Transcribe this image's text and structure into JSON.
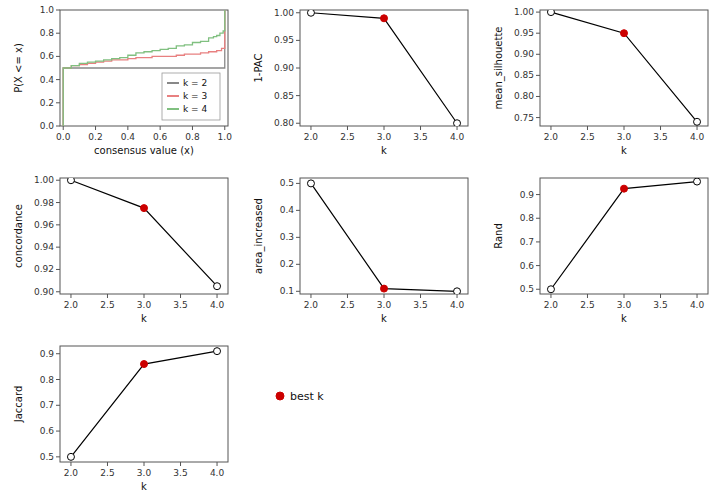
{
  "chart_data": [
    {
      "type": "step",
      "x_label": "consensus value (x)",
      "y_label": "P(X <= x)",
      "xlim": [
        -0.02,
        1.02
      ],
      "ylim": [
        0.0,
        1.0
      ],
      "xticks": [
        {
          "value": 0.0,
          "label": "0.0"
        },
        0.2,
        0.4,
        0.6,
        0.8,
        {
          "value": 1.0,
          "label": "1.0"
        }
      ],
      "yticks": [
        {
          "value": 0.0,
          "label": "0.0"
        },
        0.2,
        0.4,
        0.6,
        0.8,
        {
          "value": 1.0,
          "label": "1.0"
        }
      ],
      "grid": false,
      "legend": "lower right",
      "series": [
        {
          "name": "k = 2",
          "color": "#888888",
          "x": [
            0.0,
            0.0,
            0.5,
            0.5,
            1.0,
            1.0
          ],
          "values": [
            0.0,
            0.5,
            0.5,
            0.5,
            0.5,
            1.0
          ]
        },
        {
          "name": "k = 3",
          "color": "#e88080",
          "x": [
            0.0,
            0.0,
            0.05,
            0.1,
            0.15,
            0.2,
            0.25,
            0.3,
            0.35,
            0.4,
            0.45,
            0.5,
            0.55,
            0.6,
            0.65,
            0.7,
            0.75,
            0.8,
            0.85,
            0.9,
            0.95,
            0.98,
            1.0,
            1.0
          ],
          "values": [
            0.0,
            0.5,
            0.52,
            0.53,
            0.54,
            0.55,
            0.56,
            0.57,
            0.57,
            0.58,
            0.59,
            0.59,
            0.6,
            0.6,
            0.6,
            0.61,
            0.62,
            0.62,
            0.63,
            0.64,
            0.65,
            0.67,
            0.67,
            1.0
          ]
        },
        {
          "name": "k = 4",
          "color": "#80c080",
          "x": [
            0.0,
            0.0,
            0.05,
            0.1,
            0.15,
            0.2,
            0.25,
            0.3,
            0.35,
            0.4,
            0.45,
            0.5,
            0.55,
            0.6,
            0.65,
            0.7,
            0.75,
            0.8,
            0.85,
            0.9,
            0.93,
            0.95,
            0.97,
            0.99,
            1.0,
            1.0
          ],
          "values": [
            0.0,
            0.5,
            0.52,
            0.54,
            0.55,
            0.56,
            0.57,
            0.58,
            0.59,
            0.61,
            0.63,
            0.64,
            0.65,
            0.66,
            0.67,
            0.69,
            0.7,
            0.72,
            0.73,
            0.76,
            0.77,
            0.78,
            0.8,
            0.82,
            0.82,
            1.0
          ]
        }
      ]
    },
    {
      "type": "line",
      "x_label": "k",
      "y_label": "1-PAC",
      "x": [
        2,
        3,
        4
      ],
      "xlim": [
        1.85,
        4.15
      ],
      "xticks": [
        {
          "value": 2.0,
          "label": "2.0"
        },
        2.5,
        {
          "value": 3.0,
          "label": "3.0"
        },
        3.5,
        {
          "value": 4.0,
          "label": "4.0"
        }
      ],
      "ylim": [
        0.795,
        1.005
      ],
      "yticks": [
        {
          "value": 0.8,
          "label": "0.80"
        },
        0.85,
        {
          "value": 0.9,
          "label": "0.90"
        },
        0.95,
        {
          "value": 1.0,
          "label": "1.00"
        }
      ],
      "grid": false,
      "series": [
        {
          "color": "#000000",
          "marker": "circle",
          "colors": [
            "#ffffff",
            "#cc0000",
            "#ffffff"
          ],
          "values": [
            1.0,
            0.99,
            0.8
          ]
        }
      ]
    },
    {
      "type": "line",
      "x_label": "k",
      "y_label": "mean_silhouette",
      "x": [
        2,
        3,
        4
      ],
      "xlim": [
        1.85,
        4.15
      ],
      "xticks": [
        {
          "value": 2.0,
          "label": "2.0"
        },
        2.5,
        {
          "value": 3.0,
          "label": "3.0"
        },
        3.5,
        {
          "value": 4.0,
          "label": "4.0"
        }
      ],
      "ylim": [
        0.73,
        1.005
      ],
      "yticks": [
        0.75,
        {
          "value": 0.8,
          "label": "0.80"
        },
        0.85,
        {
          "value": 0.9,
          "label": "0.90"
        },
        0.95,
        {
          "value": 1.0,
          "label": "1.00"
        }
      ],
      "grid": false,
      "series": [
        {
          "color": "#000000",
          "marker": "circle",
          "colors": [
            "#ffffff",
            "#cc0000",
            "#ffffff"
          ],
          "values": [
            1.0,
            0.95,
            0.74
          ]
        }
      ]
    },
    {
      "type": "line",
      "x_label": "k",
      "y_label": "concordance",
      "x": [
        2,
        3,
        4
      ],
      "xlim": [
        1.85,
        4.15
      ],
      "xticks": [
        {
          "value": 2.0,
          "label": "2.0"
        },
        2.5,
        {
          "value": 3.0,
          "label": "3.0"
        },
        3.5,
        {
          "value": 4.0,
          "label": "4.0"
        }
      ],
      "ylim": [
        0.898,
        1.002
      ],
      "yticks": [
        {
          "value": 0.9,
          "label": "0.90"
        },
        0.92,
        0.94,
        0.96,
        0.98,
        {
          "value": 1.0,
          "label": "1.00"
        }
      ],
      "grid": false,
      "series": [
        {
          "color": "#000000",
          "marker": "circle",
          "colors": [
            "#ffffff",
            "#cc0000",
            "#ffffff"
          ],
          "values": [
            1.0,
            0.975,
            0.905
          ]
        }
      ]
    },
    {
      "type": "line",
      "x_label": "k",
      "y_label": "area_increased",
      "x": [
        2,
        3,
        4
      ],
      "xlim": [
        1.85,
        4.15
      ],
      "xticks": [
        {
          "value": 2.0,
          "label": "2.0"
        },
        2.5,
        {
          "value": 3.0,
          "label": "3.0"
        },
        3.5,
        {
          "value": 4.0,
          "label": "4.0"
        }
      ],
      "ylim": [
        0.09,
        0.52
      ],
      "yticks": [
        0.1,
        0.2,
        0.3,
        0.4,
        0.5
      ],
      "grid": false,
      "series": [
        {
          "color": "#000000",
          "marker": "circle",
          "colors": [
            "#ffffff",
            "#cc0000",
            "#ffffff"
          ],
          "values": [
            0.5,
            0.11,
            0.1
          ]
        }
      ]
    },
    {
      "type": "line",
      "x_label": "k",
      "y_label": "Rand",
      "x": [
        2,
        3,
        4
      ],
      "xlim": [
        1.85,
        4.15
      ],
      "xticks": [
        {
          "value": 2.0,
          "label": "2.0"
        },
        2.5,
        {
          "value": 3.0,
          "label": "3.0"
        },
        3.5,
        {
          "value": 4.0,
          "label": "4.0"
        }
      ],
      "ylim": [
        0.48,
        0.97
      ],
      "yticks": [
        0.5,
        0.6,
        0.7,
        0.8,
        0.9
      ],
      "grid": false,
      "series": [
        {
          "color": "#000000",
          "marker": "circle",
          "colors": [
            "#ffffff",
            "#cc0000",
            "#ffffff"
          ],
          "values": [
            0.5,
            0.925,
            0.955
          ]
        }
      ]
    },
    {
      "type": "line",
      "x_label": "k",
      "y_label": "Jaccard",
      "x": [
        2,
        3,
        4
      ],
      "xlim": [
        1.85,
        4.15
      ],
      "xticks": [
        {
          "value": 2.0,
          "label": "2.0"
        },
        2.5,
        {
          "value": 3.0,
          "label": "3.0"
        },
        3.5,
        {
          "value": 4.0,
          "label": "4.0"
        }
      ],
      "ylim": [
        0.48,
        0.93
      ],
      "yticks": [
        0.5,
        0.6,
        0.7,
        0.8,
        0.9
      ],
      "grid": false,
      "series": [
        {
          "color": "#000000",
          "marker": "circle",
          "colors": [
            "#ffffff",
            "#cc0000",
            "#ffffff"
          ],
          "values": [
            0.5,
            0.86,
            0.91
          ]
        }
      ]
    },
    {
      "type": "legend",
      "series": [
        {
          "name": "best k",
          "color": "#cc0000",
          "marker": "circle"
        }
      ]
    }
  ]
}
